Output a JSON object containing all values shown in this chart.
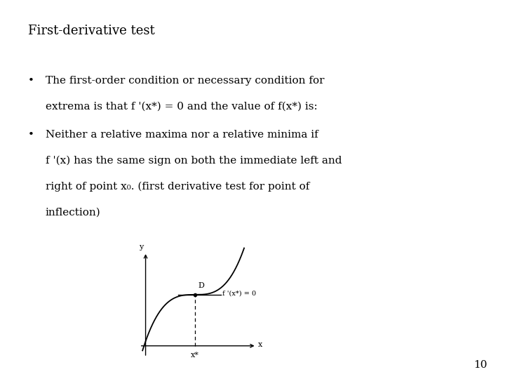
{
  "title": "First-derivative test",
  "bullet1_line1": "The first-order condition or necessary condition for",
  "bullet1_line2": "extrema is that f '(x*) = 0 and the value of f(x*) is:",
  "bullet2_line1": "Neither a relative maxima nor a relative minima if",
  "bullet2_line2": "f '(x) has the same sign on both the immediate left and",
  "bullet2_line3": "right of point x₀. (first derivative test for point of",
  "bullet2_line4": "inflection)",
  "page_number": "10",
  "bg_color": "#ffffff",
  "text_color": "#000000",
  "title_fontsize": 13,
  "body_fontsize": 11,
  "graph_label_f": "f '(x*) = 0",
  "graph_label_D": "D",
  "graph_label_y": "y",
  "graph_label_x": "x",
  "graph_label_xstar": "x*"
}
